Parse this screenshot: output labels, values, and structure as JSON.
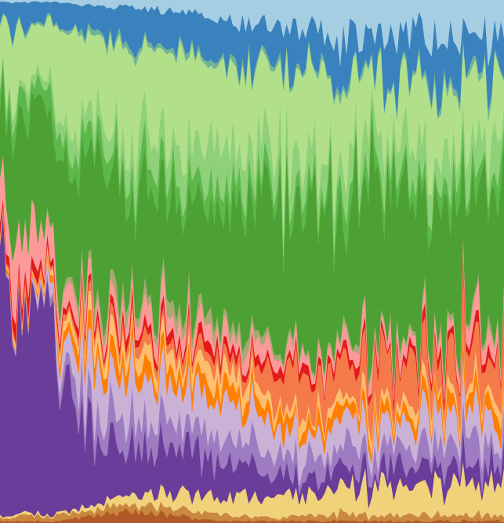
{
  "chart_data": {
    "type": "area",
    "stacked": true,
    "normalized": true,
    "title": "",
    "xlabel": "",
    "ylabel": "",
    "axes_visible": false,
    "grid": false,
    "legend": "none",
    "x": [
      0,
      6,
      12,
      19,
      25,
      31,
      37,
      44,
      50,
      56,
      62,
      69,
      75,
      81,
      87,
      94,
      100
    ],
    "ylim": [
      0,
      1
    ],
    "series": [
      {
        "key": "s01",
        "color": "#b15928",
        "values": [
          0.004,
          0.004,
          0.004,
          0.015,
          0.02,
          0.018,
          0.012,
          0.004,
          0.004,
          0.004,
          0.004,
          0.004,
          0.004,
          0.004,
          0.004,
          0.004,
          0.004
        ]
      },
      {
        "key": "s02",
        "color": "#c9883e",
        "values": [
          0.008,
          0.012,
          0.01,
          0.012,
          0.014,
          0.016,
          0.014,
          0.012,
          0.01,
          0.008,
          0.01,
          0.012,
          0.01,
          0.012,
          0.01,
          0.012,
          0.01
        ]
      },
      {
        "key": "s03",
        "color": "#f0d27a",
        "values": [
          0.004,
          0.004,
          0.004,
          0.01,
          0.015,
          0.022,
          0.028,
          0.034,
          0.038,
          0.042,
          0.046,
          0.05,
          0.052,
          0.054,
          0.056,
          0.058,
          0.06
        ]
      },
      {
        "key": "s04",
        "color": "#6a3d9a",
        "values": [
          0.46,
          0.4,
          0.3,
          0.12,
          0.1,
          0.09,
          0.08,
          0.07,
          0.062,
          0.04,
          0.035,
          0.035,
          0.035,
          0.035,
          0.035,
          0.035,
          0.035
        ]
      },
      {
        "key": "s05",
        "color": "#9e7cc1",
        "values": [
          0.004,
          0.004,
          0.02,
          0.06,
          0.06,
          0.055,
          0.05,
          0.05,
          0.045,
          0.045,
          0.045,
          0.045,
          0.045,
          0.045,
          0.045,
          0.045,
          0.045
        ]
      },
      {
        "key": "s06",
        "color": "#cab2d6",
        "values": [
          0.004,
          0.004,
          0.04,
          0.08,
          0.075,
          0.07,
          0.07,
          0.065,
          0.06,
          0.05,
          0.05,
          0.05,
          0.05,
          0.05,
          0.05,
          0.05,
          0.05
        ]
      },
      {
        "key": "s07",
        "color": "#ff7f00",
        "values": [
          0.006,
          0.006,
          0.015,
          0.03,
          0.03,
          0.032,
          0.03,
          0.03,
          0.03,
          0.025,
          0.025,
          0.025,
          0.025,
          0.025,
          0.025,
          0.025,
          0.025
        ]
      },
      {
        "key": "s08",
        "color": "#fdbf6f",
        "values": [
          0.006,
          0.006,
          0.015,
          0.03,
          0.03,
          0.032,
          0.03,
          0.03,
          0.03,
          0.02,
          0.02,
          0.02,
          0.02,
          0.02,
          0.02,
          0.02,
          0.02
        ]
      },
      {
        "key": "s09",
        "color": "#f47a4a",
        "values": [
          0.006,
          0.006,
          0.01,
          0.02,
          0.022,
          0.022,
          0.022,
          0.022,
          0.022,
          0.07,
          0.075,
          0.075,
          0.075,
          0.075,
          0.075,
          0.075,
          0.075
        ]
      },
      {
        "key": "s10",
        "color": "#e31a1c",
        "values": [
          0.02,
          0.02,
          0.012,
          0.015,
          0.015,
          0.015,
          0.015,
          0.015,
          0.015,
          0.015,
          0.015,
          0.015,
          0.015,
          0.015,
          0.015,
          0.015,
          0.015
        ]
      },
      {
        "key": "s11",
        "color": "#fb9a99",
        "values": [
          0.08,
          0.1,
          0.04,
          0.025,
          0.03,
          0.035,
          0.03,
          0.03,
          0.03,
          0.025,
          0.025,
          0.025,
          0.025,
          0.025,
          0.025,
          0.025,
          0.025
        ]
      },
      {
        "key": "s12",
        "color": "#a8a872",
        "values": [
          0.004,
          0.004,
          0.01,
          0.02,
          0.022,
          0.025,
          0.022,
          0.02,
          0.02,
          0.01,
          0.01,
          0.01,
          0.01,
          0.01,
          0.01,
          0.01,
          0.01
        ]
      },
      {
        "key": "s13",
        "color": "#4da033",
        "values": [
          0.19,
          0.21,
          0.27,
          0.26,
          0.23,
          0.21,
          0.22,
          0.24,
          0.25,
          0.28,
          0.3,
          0.31,
          0.33,
          0.34,
          0.3,
          0.3,
          0.3
        ]
      },
      {
        "key": "s14",
        "color": "#5cb84b",
        "values": [
          0.04,
          0.04,
          0.04,
          0.04,
          0.04,
          0.04,
          0.04,
          0.04,
          0.04,
          0.035,
          0.035,
          0.035,
          0.035,
          0.035,
          0.035,
          0.035,
          0.035
        ]
      },
      {
        "key": "s15",
        "color": "#8fd07a",
        "values": [
          0.02,
          0.02,
          0.03,
          0.04,
          0.05,
          0.06,
          0.06,
          0.07,
          0.07,
          0.06,
          0.06,
          0.06,
          0.06,
          0.06,
          0.06,
          0.06,
          0.06
        ]
      },
      {
        "key": "s16",
        "color": "#b2df8a",
        "values": [
          0.12,
          0.12,
          0.14,
          0.15,
          0.16,
          0.16,
          0.17,
          0.16,
          0.15,
          0.16,
          0.15,
          0.13,
          0.12,
          0.11,
          0.12,
          0.12,
          0.12
        ]
      },
      {
        "key": "s17",
        "color": "#72b398",
        "values": [
          0.004,
          0.004,
          0.006,
          0.01,
          0.01,
          0.01,
          0.01,
          0.01,
          0.01,
          0.01,
          0.01,
          0.01,
          0.01,
          0.01,
          0.01,
          0.01,
          0.01
        ]
      },
      {
        "key": "s18",
        "color": "#3a82bd",
        "values": [
          0.04,
          0.04,
          0.04,
          0.05,
          0.06,
          0.065,
          0.07,
          0.075,
          0.075,
          0.07,
          0.07,
          0.07,
          0.07,
          0.07,
          0.07,
          0.07,
          0.07
        ]
      },
      {
        "key": "s19",
        "color": "#a6cee3",
        "values": [
          0.004,
          0.004,
          0.004,
          0.01,
          0.012,
          0.018,
          0.025,
          0.035,
          0.045,
          0.06,
          0.065,
          0.07,
          0.07,
          0.07,
          0.07,
          0.075,
          0.08
        ]
      }
    ]
  }
}
